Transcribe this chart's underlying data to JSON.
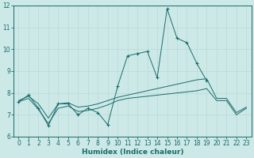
{
  "xlabel": "Humidex (Indice chaleur)",
  "background_color": "#cce9e7",
  "grid_color": "#b8d8d6",
  "line_color": "#1a6b6b",
  "x_values": [
    0,
    1,
    2,
    3,
    4,
    5,
    6,
    7,
    8,
    9,
    10,
    11,
    12,
    13,
    14,
    15,
    16,
    17,
    18,
    19,
    20,
    21,
    22,
    23
  ],
  "series_main": [
    7.6,
    7.9,
    7.3,
    6.5,
    7.5,
    7.5,
    7.0,
    7.3,
    7.1,
    6.55,
    8.3,
    9.7,
    9.8,
    9.9,
    8.7,
    11.85,
    10.5,
    10.3,
    9.35,
    8.55,
    null,
    null,
    null,
    null
  ],
  "series_upper": [
    7.65,
    7.85,
    7.5,
    6.85,
    7.5,
    7.55,
    7.35,
    7.4,
    7.5,
    7.65,
    7.8,
    7.9,
    8.0,
    8.1,
    8.2,
    8.3,
    8.4,
    8.5,
    8.6,
    8.65,
    7.75,
    7.75,
    7.1,
    7.35
  ],
  "series_lower": [
    7.6,
    7.75,
    7.25,
    6.6,
    7.3,
    7.4,
    7.15,
    7.2,
    7.3,
    7.45,
    7.65,
    7.75,
    7.8,
    7.85,
    7.9,
    7.95,
    8.0,
    8.05,
    8.1,
    8.2,
    7.65,
    7.65,
    7.0,
    7.3
  ],
  "ylim": [
    6,
    12
  ],
  "xlim_min": -0.5,
  "xlim_max": 23.5,
  "yticks": [
    6,
    7,
    8,
    9,
    10,
    11,
    12
  ],
  "xticks": [
    0,
    1,
    2,
    3,
    4,
    5,
    6,
    7,
    8,
    9,
    10,
    11,
    12,
    13,
    14,
    15,
    16,
    17,
    18,
    19,
    20,
    21,
    22,
    23
  ],
  "xlabel_fontsize": 6.5,
  "tick_fontsize": 5.5
}
